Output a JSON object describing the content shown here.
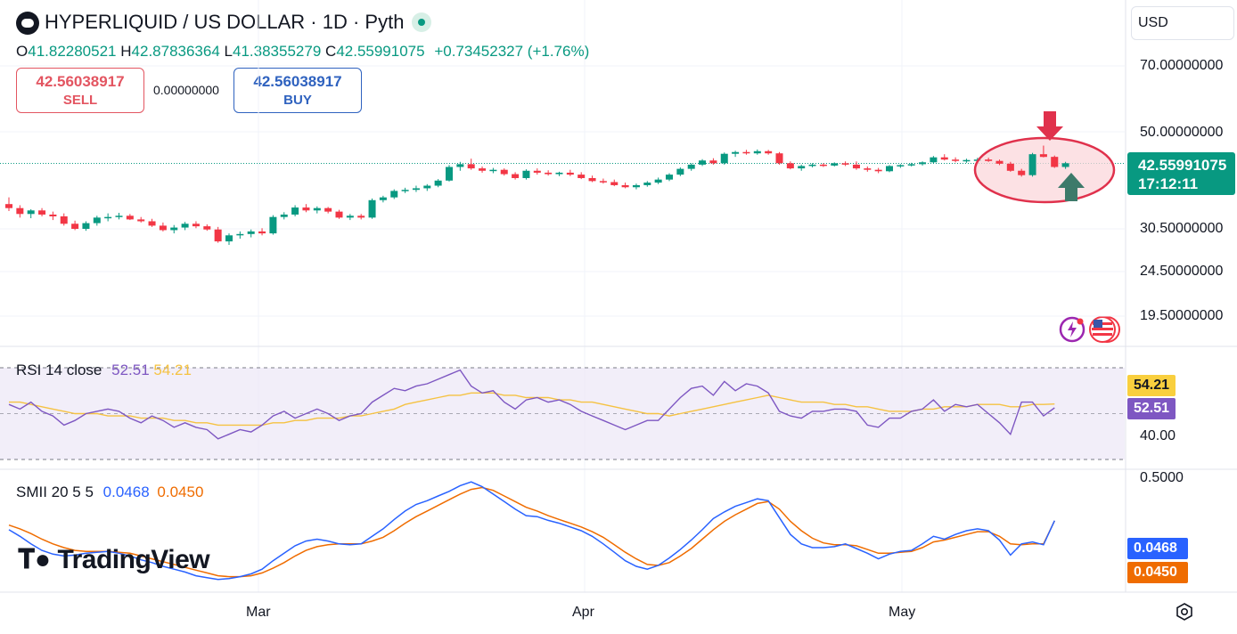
{
  "header": {
    "title": "HYPERLIQUID / US DOLLAR · 1D · Pyth",
    "ohlc": {
      "o_label": "O",
      "o_value": "41.82280521",
      "h_label": "H",
      "h_value": "42.87836364",
      "l_label": "L",
      "l_value": "41.38355279",
      "c_label": "C",
      "c_value": "42.55991075",
      "change": "+0.73452327 (+1.76%)"
    }
  },
  "trade": {
    "sell_price": "42.56038917",
    "sell_label": "SELL",
    "spread": "0.00000000",
    "buy_price": "42.56038917",
    "buy_label": "BUY"
  },
  "currency": {
    "selected": "USD"
  },
  "price_axis": {
    "labels": [
      "70.00000000",
      "50.00000000",
      "30.50000000",
      "24.50000000",
      "19.50000000"
    ]
  },
  "price_tag": {
    "price": "42.55991075",
    "countdown": "17:12:11"
  },
  "rsi": {
    "title": "RSI 14 close",
    "value": "52.51",
    "ma_value": "54.21",
    "axis_label": "40.00",
    "tag_ma": "54.21",
    "tag_value": "52.51",
    "color_line": "#7e57c2",
    "color_ma": "#f5c242"
  },
  "smii": {
    "title": "SMII 20 5 5",
    "value": "0.0468",
    "signal": "0.0450",
    "axis_label": "0.5000",
    "tag_value": "0.0468",
    "tag_signal": "0.0450",
    "color_value": "#2962ff",
    "color_signal": "#ef6c00"
  },
  "time_axis": {
    "months": [
      "Mar",
      "Apr",
      "May"
    ]
  },
  "watermark": {
    "brand": "TradingView"
  },
  "colors": {
    "up": "#089981",
    "down": "#f23645",
    "annotation": "#e0314c",
    "annotation_fill": "#fbd7db",
    "arrow_up": "#3d7a6a"
  },
  "icons": {
    "logo": "hyperliquid-logo-icon",
    "live": "live-dot-icon",
    "settings": "gear-icon",
    "clock": "clock-icon",
    "flag": "us-flag-icon"
  },
  "chart_data": {
    "type": "candlestick",
    "price_axis_ticks": [
      70,
      50,
      30.5,
      24.5,
      19.5
    ],
    "last_price": 42.55991075,
    "x_months": [
      "Mar",
      "Apr",
      "May"
    ],
    "ohlc": [
      [
        34.6,
        35.8,
        33.4,
        33.9
      ],
      [
        33.9,
        34.4,
        32.3,
        32.9
      ],
      [
        32.9,
        33.7,
        32.2,
        33.5
      ],
      [
        33.5,
        33.9,
        32.5,
        32.8
      ],
      [
        32.8,
        33.3,
        31.9,
        32.5
      ],
      [
        32.5,
        33.0,
        31.0,
        31.3
      ],
      [
        31.3,
        31.8,
        30.3,
        30.5
      ],
      [
        30.5,
        31.7,
        30.2,
        31.4
      ],
      [
        31.4,
        32.6,
        31.0,
        32.3
      ],
      [
        32.3,
        33.0,
        31.7,
        32.4
      ],
      [
        32.4,
        33.1,
        32.0,
        32.6
      ],
      [
        32.6,
        32.9,
        31.9,
        32.0
      ],
      [
        32.0,
        32.4,
        31.5,
        31.7
      ],
      [
        31.7,
        32.1,
        30.8,
        31.0
      ],
      [
        31.0,
        31.5,
        30.1,
        30.3
      ],
      [
        30.3,
        31.1,
        29.8,
        30.7
      ],
      [
        30.7,
        31.6,
        30.3,
        31.3
      ],
      [
        31.3,
        31.7,
        30.6,
        30.9
      ],
      [
        30.9,
        31.2,
        30.2,
        30.4
      ],
      [
        30.4,
        30.8,
        28.4,
        28.6
      ],
      [
        28.6,
        29.8,
        28.1,
        29.5
      ],
      [
        29.5,
        30.1,
        29.0,
        29.7
      ],
      [
        29.7,
        30.4,
        29.2,
        30.1
      ],
      [
        30.1,
        30.6,
        29.5,
        29.8
      ],
      [
        29.8,
        32.7,
        29.6,
        32.4
      ],
      [
        32.4,
        33.2,
        32.0,
        32.8
      ],
      [
        32.8,
        34.4,
        32.5,
        34.0
      ],
      [
        34.0,
        34.6,
        33.2,
        33.5
      ],
      [
        33.5,
        34.2,
        33.0,
        33.9
      ],
      [
        33.9,
        34.1,
        33.0,
        33.3
      ],
      [
        33.3,
        33.6,
        32.1,
        32.3
      ],
      [
        32.3,
        32.9,
        31.9,
        32.6
      ],
      [
        32.6,
        32.9,
        32.0,
        32.3
      ],
      [
        32.3,
        35.6,
        32.1,
        35.3
      ],
      [
        35.3,
        36.1,
        34.9,
        35.8
      ],
      [
        35.8,
        37.3,
        35.5,
        37.0
      ],
      [
        37.0,
        37.6,
        36.6,
        37.2
      ],
      [
        37.2,
        38.0,
        36.8,
        37.5
      ],
      [
        37.5,
        38.3,
        37.0,
        38.0
      ],
      [
        38.0,
        39.3,
        37.7,
        39.0
      ],
      [
        39.0,
        42.2,
        38.8,
        41.8
      ],
      [
        41.8,
        42.9,
        41.0,
        42.4
      ],
      [
        42.4,
        43.6,
        41.2,
        41.5
      ],
      [
        41.5,
        41.9,
        40.6,
        41.0
      ],
      [
        41.0,
        41.6,
        40.5,
        41.2
      ],
      [
        41.2,
        41.5,
        40.0,
        40.3
      ],
      [
        40.3,
        40.7,
        39.2,
        39.5
      ],
      [
        39.5,
        41.3,
        39.2,
        41.0
      ],
      [
        41.0,
        41.5,
        40.2,
        40.6
      ],
      [
        40.6,
        41.1,
        40.0,
        40.3
      ],
      [
        40.3,
        40.8,
        39.9,
        40.6
      ],
      [
        40.6,
        41.2,
        39.9,
        40.2
      ],
      [
        40.2,
        40.7,
        39.3,
        39.5
      ],
      [
        39.5,
        40.0,
        38.7,
        38.9
      ],
      [
        38.9,
        39.4,
        38.4,
        38.7
      ],
      [
        38.7,
        39.2,
        37.9,
        38.1
      ],
      [
        38.1,
        38.6,
        37.5,
        37.7
      ],
      [
        37.7,
        38.4,
        37.3,
        38.1
      ],
      [
        38.1,
        38.9,
        37.8,
        38.6
      ],
      [
        38.6,
        39.6,
        38.3,
        39.2
      ],
      [
        39.2,
        40.5,
        38.9,
        40.2
      ],
      [
        40.2,
        41.7,
        39.9,
        41.4
      ],
      [
        41.4,
        42.6,
        41.0,
        42.3
      ],
      [
        42.3,
        43.5,
        42.0,
        43.2
      ],
      [
        43.2,
        43.7,
        42.3,
        42.6
      ],
      [
        42.6,
        45.0,
        42.3,
        44.7
      ],
      [
        44.7,
        45.4,
        44.0,
        45.1
      ],
      [
        45.1,
        45.6,
        44.5,
        44.8
      ],
      [
        44.8,
        45.7,
        44.5,
        45.3
      ],
      [
        45.3,
        45.6,
        44.5,
        44.8
      ],
      [
        44.8,
        45.1,
        42.3,
        42.6
      ],
      [
        42.6,
        43.0,
        41.3,
        41.5
      ],
      [
        41.5,
        42.3,
        41.0,
        42.0
      ],
      [
        42.0,
        42.6,
        41.7,
        42.3
      ],
      [
        42.3,
        42.6,
        41.8,
        42.1
      ],
      [
        42.1,
        42.8,
        41.9,
        42.6
      ],
      [
        42.6,
        43.0,
        42.0,
        42.3
      ],
      [
        42.3,
        43.0,
        41.2,
        41.5
      ],
      [
        41.5,
        41.9,
        40.8,
        41.2
      ],
      [
        41.2,
        41.6,
        40.5,
        40.9
      ],
      [
        40.9,
        42.2,
        40.7,
        42.0
      ],
      [
        42.0,
        42.4,
        41.6,
        42.2
      ],
      [
        42.2,
        42.7,
        41.9,
        42.4
      ],
      [
        42.4,
        43.0,
        42.1,
        42.8
      ],
      [
        42.8,
        44.2,
        42.5,
        43.9
      ],
      [
        43.9,
        44.6,
        43.2,
        43.4
      ],
      [
        43.4,
        43.9,
        42.8,
        43.1
      ],
      [
        43.1,
        43.6,
        42.7,
        43.3
      ],
      [
        43.3,
        43.8,
        43.0,
        43.4
      ],
      [
        43.4,
        43.8,
        42.9,
        43.1
      ],
      [
        43.1,
        43.4,
        42.2,
        42.5
      ],
      [
        42.5,
        42.9,
        40.8,
        41.0
      ],
      [
        41.0,
        41.4,
        39.8,
        40.1
      ],
      [
        40.1,
        44.9,
        39.8,
        44.6
      ],
      [
        44.6,
        46.6,
        43.9,
        44.0
      ],
      [
        44.0,
        44.3,
        41.6,
        41.8
      ],
      [
        41.8,
        42.9,
        41.4,
        42.6
      ]
    ],
    "rsi": {
      "ylim": [
        25,
        75
      ],
      "values": [
        54,
        52,
        55,
        51,
        49,
        45,
        47,
        50,
        51,
        52,
        51,
        48,
        46,
        49,
        47,
        44,
        46,
        44,
        43,
        39,
        41,
        43,
        42,
        45,
        49,
        51,
        48,
        50,
        52,
        50,
        47,
        49,
        50,
        55,
        58,
        61,
        60,
        62,
        63,
        65,
        67,
        69,
        62,
        59,
        60,
        55,
        52,
        56,
        57,
        55,
        56,
        54,
        51,
        49,
        47,
        45,
        43,
        45,
        47,
        47,
        52,
        57,
        61,
        62,
        58,
        64,
        60,
        63,
        62,
        59,
        51,
        49,
        48,
        51,
        51,
        52,
        52,
        51,
        45,
        44,
        48,
        48,
        51,
        52,
        56,
        51,
        54,
        53,
        54,
        50,
        46,
        41,
        55,
        55,
        49,
        52.51
      ],
      "ma": [
        55,
        55,
        54,
        53,
        52,
        51,
        50,
        50,
        50,
        49,
        49,
        49,
        48,
        48,
        48,
        47,
        47,
        46,
        46,
        45,
        45,
        45,
        45,
        45,
        46,
        46,
        47,
        47,
        48,
        48,
        48,
        49,
        49,
        50,
        51,
        52,
        54,
        55,
        56,
        57,
        58,
        58,
        59,
        59,
        59,
        58,
        58,
        57,
        57,
        57,
        56,
        56,
        55,
        55,
        54,
        53,
        52,
        51,
        50,
        50,
        49,
        50,
        51,
        52,
        53,
        54,
        55,
        56,
        57,
        58,
        57,
        56,
        55,
        55,
        55,
        54,
        54,
        53,
        53,
        52,
        51,
        51,
        51,
        52,
        52,
        53,
        53,
        53,
        54,
        54,
        54,
        53,
        53,
        54,
        54,
        54.21
      ]
    },
    "smii": {
      "ylim": [
        -0.65,
        0.55
      ],
      "values": [
        -0.05,
        -0.12,
        -0.2,
        -0.27,
        -0.31,
        -0.33,
        -0.32,
        -0.3,
        -0.29,
        -0.28,
        -0.3,
        -0.33,
        -0.37,
        -0.4,
        -0.44,
        -0.47,
        -0.5,
        -0.54,
        -0.56,
        -0.58,
        -0.57,
        -0.55,
        -0.52,
        -0.47,
        -0.38,
        -0.3,
        -0.22,
        -0.17,
        -0.15,
        -0.17,
        -0.2,
        -0.21,
        -0.2,
        -0.12,
        -0.04,
        0.06,
        0.15,
        0.22,
        0.26,
        0.31,
        0.36,
        0.42,
        0.46,
        0.41,
        0.33,
        0.25,
        0.17,
        0.1,
        0.09,
        0.05,
        0.02,
        -0.02,
        -0.06,
        -0.12,
        -0.2,
        -0.29,
        -0.38,
        -0.44,
        -0.47,
        -0.43,
        -0.35,
        -0.26,
        -0.16,
        -0.05,
        0.07,
        0.14,
        0.2,
        0.24,
        0.28,
        0.26,
        0.08,
        -0.1,
        -0.2,
        -0.24,
        -0.24,
        -0.23,
        -0.2,
        -0.25,
        -0.3,
        -0.36,
        -0.31,
        -0.28,
        -0.27,
        -0.2,
        -0.12,
        -0.15,
        -0.1,
        -0.06,
        -0.04,
        -0.06,
        -0.16,
        -0.32,
        -0.2,
        -0.18,
        -0.21,
        0.0468
      ],
      "signal": [
        0.0,
        -0.04,
        -0.09,
        -0.15,
        -0.2,
        -0.24,
        -0.27,
        -0.28,
        -0.28,
        -0.28,
        -0.29,
        -0.3,
        -0.33,
        -0.36,
        -0.39,
        -0.42,
        -0.45,
        -0.48,
        -0.51,
        -0.54,
        -0.55,
        -0.55,
        -0.54,
        -0.51,
        -0.46,
        -0.4,
        -0.33,
        -0.27,
        -0.23,
        -0.21,
        -0.2,
        -0.2,
        -0.2,
        -0.17,
        -0.13,
        -0.06,
        0.02,
        0.09,
        0.15,
        0.21,
        0.27,
        0.33,
        0.38,
        0.4,
        0.37,
        0.31,
        0.25,
        0.19,
        0.15,
        0.1,
        0.06,
        0.02,
        -0.02,
        -0.07,
        -0.13,
        -0.21,
        -0.29,
        -0.36,
        -0.42,
        -0.43,
        -0.4,
        -0.33,
        -0.25,
        -0.15,
        -0.05,
        0.04,
        0.11,
        0.17,
        0.23,
        0.25,
        0.17,
        0.04,
        -0.06,
        -0.14,
        -0.19,
        -0.21,
        -0.21,
        -0.22,
        -0.26,
        -0.3,
        -0.3,
        -0.29,
        -0.28,
        -0.24,
        -0.18,
        -0.16,
        -0.13,
        -0.1,
        -0.07,
        -0.07,
        -0.12,
        -0.2,
        -0.21,
        -0.2,
        -0.2,
        0.045
      ]
    }
  }
}
